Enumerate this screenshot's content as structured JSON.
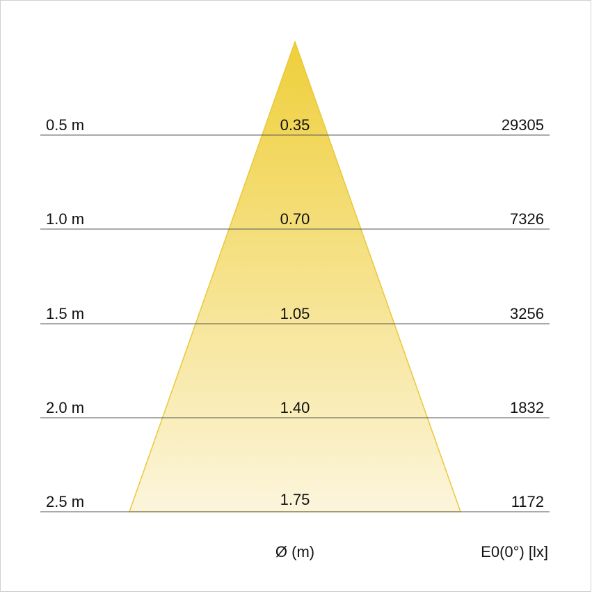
{
  "rows": [
    {
      "distance": "0.5 m",
      "diameter": "0.35",
      "illuminance": "29305"
    },
    {
      "distance": "1.0 m",
      "diameter": "0.70",
      "illuminance": "7326"
    },
    {
      "distance": "1.5 m",
      "diameter": "1.05",
      "illuminance": "3256"
    },
    {
      "distance": "2.0 m",
      "diameter": "1.40",
      "illuminance": "1832"
    },
    {
      "distance": "2.5 m",
      "diameter": "1.75",
      "illuminance": "1172"
    }
  ],
  "footer": {
    "diameter_label": "Ø (m)",
    "illuminance_label": "E0(0°) [lx]"
  }
}
